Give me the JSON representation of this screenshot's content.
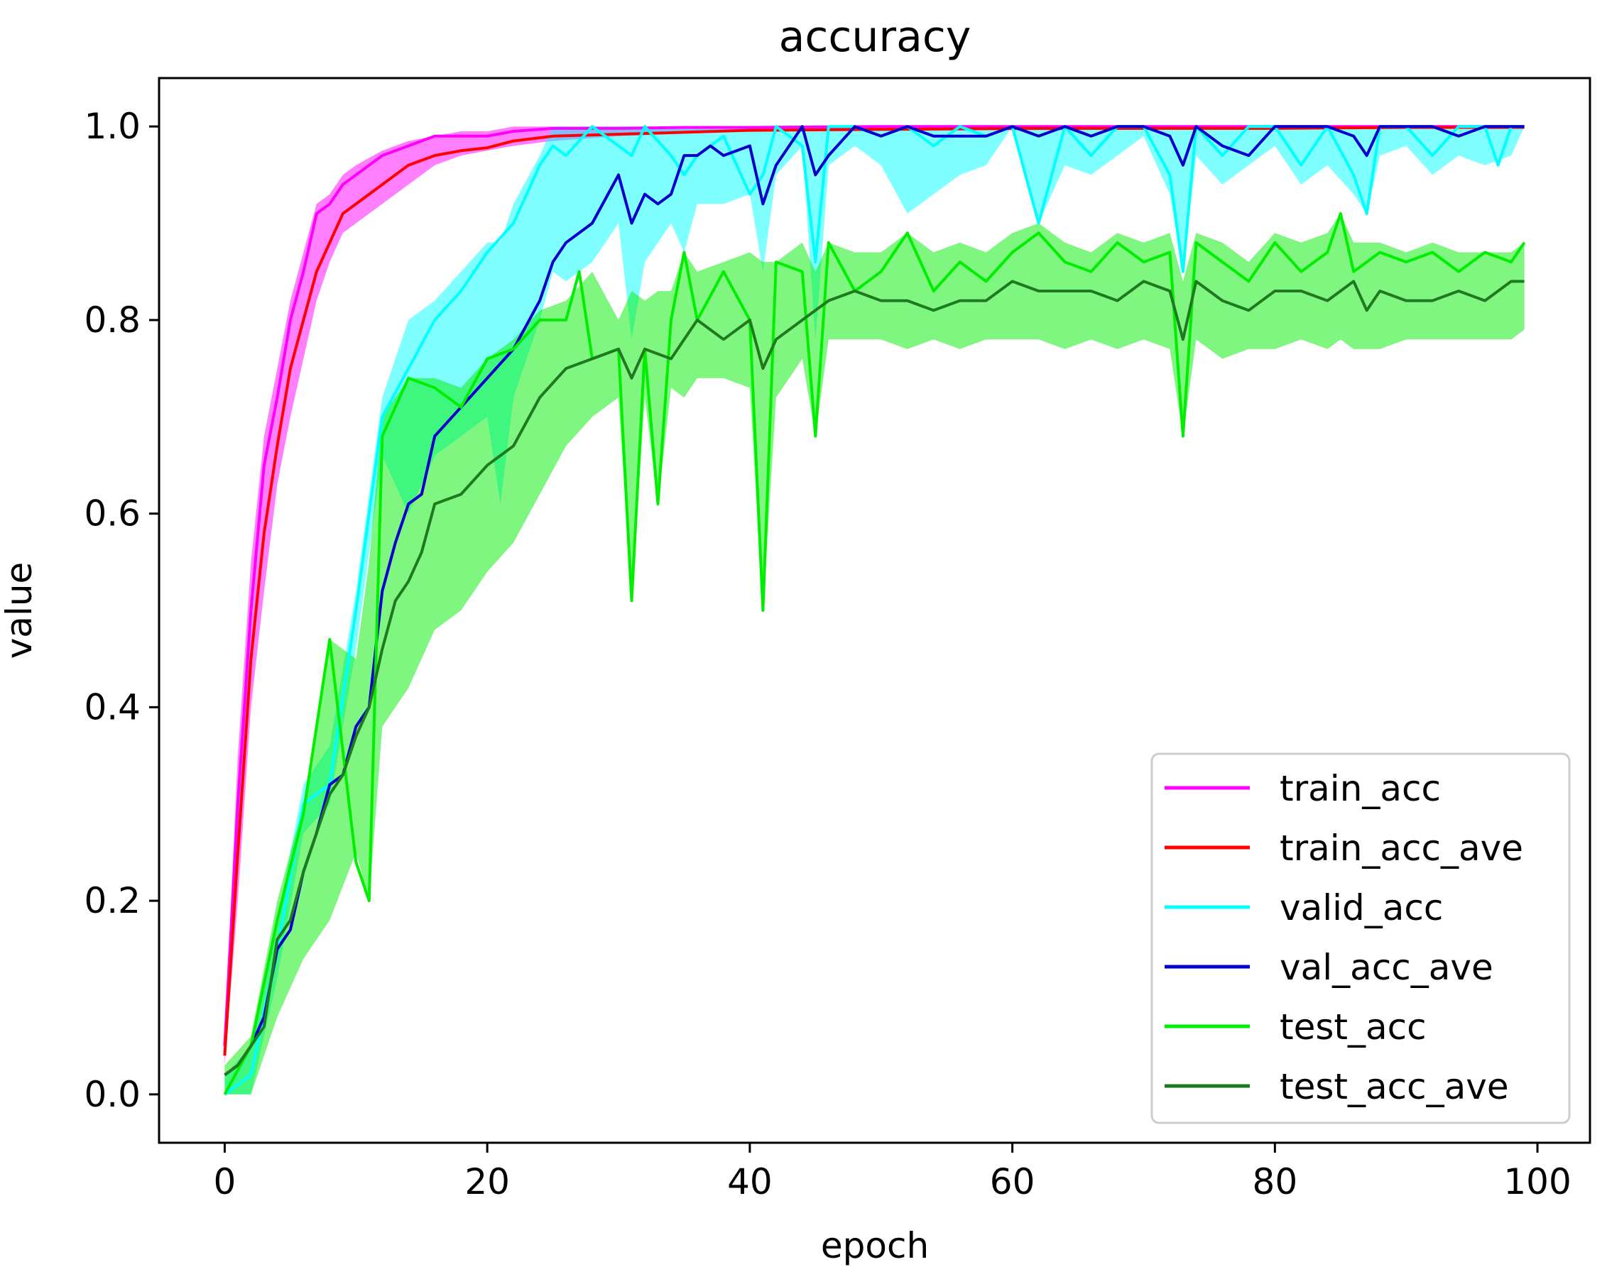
{
  "chart_data": {
    "type": "line",
    "title": "accuracy",
    "xlabel": "epoch",
    "ylabel": "value",
    "xlim": [
      -5,
      104
    ],
    "ylim": [
      -0.05,
      1.05
    ],
    "xticks": [
      0,
      20,
      40,
      60,
      80,
      100
    ],
    "yticks": [
      0.0,
      0.2,
      0.4,
      0.6,
      0.8,
      1.0
    ],
    "xtick_labels": [
      "0",
      "20",
      "40",
      "60",
      "80",
      "100"
    ],
    "ytick_labels": [
      "0.0",
      "0.2",
      "0.4",
      "0.6",
      "0.8",
      "1.0"
    ],
    "grid": false,
    "legend_position": "lower-right",
    "series": [
      {
        "name": "train_acc",
        "color": "#ff00ff",
        "x": [
          0,
          1,
          2,
          3,
          4,
          5,
          6,
          7,
          8,
          9,
          10,
          12,
          14,
          16,
          18,
          20,
          22,
          25,
          30,
          35,
          40,
          50,
          60,
          70,
          80,
          90,
          99
        ],
        "values": [
          0.05,
          0.3,
          0.5,
          0.65,
          0.72,
          0.8,
          0.85,
          0.91,
          0.92,
          0.94,
          0.95,
          0.97,
          0.98,
          0.99,
          0.99,
          0.99,
          0.995,
          0.998,
          0.998,
          0.999,
          0.999,
          1.0,
          1.0,
          1.0,
          1.0,
          1.0,
          1.0
        ]
      },
      {
        "name": "train_acc_ave",
        "color": "#ff0000",
        "x": [
          0,
          1,
          2,
          3,
          4,
          5,
          6,
          7,
          8,
          9,
          10,
          12,
          14,
          16,
          18,
          20,
          22,
          25,
          30,
          35,
          40,
          50,
          60,
          70,
          80,
          90,
          99
        ],
        "values": [
          0.04,
          0.25,
          0.45,
          0.58,
          0.67,
          0.75,
          0.8,
          0.85,
          0.88,
          0.91,
          0.92,
          0.94,
          0.96,
          0.97,
          0.975,
          0.978,
          0.985,
          0.99,
          0.992,
          0.994,
          0.996,
          0.997,
          0.998,
          0.998,
          0.998,
          0.999,
          0.999
        ]
      },
      {
        "name": "valid_acc",
        "color": "#00ffff",
        "x": [
          0,
          2,
          4,
          6,
          8,
          10,
          12,
          14,
          16,
          18,
          20,
          22,
          24,
          25,
          26,
          28,
          30,
          31,
          32,
          34,
          35,
          36,
          38,
          40,
          41,
          42,
          44,
          45,
          46,
          48,
          50,
          52,
          54,
          56,
          58,
          60,
          62,
          64,
          66,
          68,
          70,
          72,
          73,
          74,
          76,
          78,
          80,
          82,
          84,
          86,
          87,
          88,
          90,
          92,
          94,
          96,
          97,
          98,
          99
        ],
        "values": [
          0.0,
          0.02,
          0.15,
          0.3,
          0.32,
          0.5,
          0.7,
          0.75,
          0.8,
          0.83,
          0.87,
          0.9,
          0.96,
          0.98,
          0.97,
          1.0,
          0.98,
          0.97,
          1.0,
          0.97,
          0.95,
          0.97,
          0.99,
          0.93,
          0.95,
          1.0,
          0.98,
          0.86,
          1.0,
          1.0,
          0.99,
          1.0,
          0.98,
          1.0,
          0.99,
          1.0,
          0.9,
          1.0,
          0.97,
          1.0,
          1.0,
          0.95,
          0.85,
          1.0,
          0.97,
          1.0,
          1.0,
          0.96,
          1.0,
          0.95,
          0.91,
          1.0,
          1.0,
          0.97,
          1.0,
          1.0,
          0.96,
          1.0,
          1.0
        ]
      },
      {
        "name": "val_acc_ave",
        "color": "#0000cc",
        "x": [
          0,
          1,
          2,
          3,
          4,
          5,
          6,
          7,
          8,
          9,
          10,
          11,
          12,
          13,
          14,
          15,
          16,
          18,
          20,
          22,
          24,
          25,
          26,
          28,
          30,
          31,
          32,
          33,
          34,
          35,
          36,
          37,
          38,
          40,
          41,
          42,
          44,
          45,
          46,
          48,
          50,
          52,
          54,
          56,
          58,
          60,
          62,
          64,
          66,
          68,
          70,
          72,
          73,
          74,
          76,
          78,
          80,
          82,
          84,
          86,
          87,
          88,
          90,
          92,
          94,
          96,
          98,
          99
        ],
        "values": [
          0.02,
          0.03,
          0.05,
          0.08,
          0.15,
          0.17,
          0.23,
          0.27,
          0.32,
          0.33,
          0.38,
          0.4,
          0.52,
          0.57,
          0.61,
          0.62,
          0.68,
          0.71,
          0.74,
          0.77,
          0.82,
          0.86,
          0.88,
          0.9,
          0.95,
          0.9,
          0.93,
          0.92,
          0.93,
          0.97,
          0.97,
          0.98,
          0.97,
          0.98,
          0.92,
          0.96,
          1.0,
          0.95,
          0.97,
          1.0,
          0.99,
          1.0,
          0.99,
          0.99,
          0.99,
          1.0,
          0.99,
          1.0,
          0.99,
          1.0,
          1.0,
          0.99,
          0.96,
          1.0,
          0.98,
          0.97,
          1.0,
          1.0,
          1.0,
          0.99,
          0.97,
          1.0,
          1.0,
          1.0,
          0.99,
          1.0,
          1.0,
          1.0
        ]
      },
      {
        "name": "test_acc",
        "color": "#00ee00",
        "x": [
          0,
          2,
          4,
          6,
          8,
          10,
          11,
          12,
          14,
          16,
          18,
          20,
          22,
          24,
          26,
          27,
          28,
          30,
          31,
          32,
          33,
          34,
          35,
          36,
          38,
          40,
          41,
          42,
          44,
          45,
          46,
          48,
          50,
          52,
          54,
          56,
          58,
          60,
          62,
          64,
          66,
          68,
          70,
          72,
          73,
          74,
          76,
          78,
          80,
          82,
          84,
          85,
          86,
          88,
          90,
          92,
          94,
          96,
          98,
          99
        ],
        "values": [
          0.0,
          0.05,
          0.18,
          0.29,
          0.47,
          0.24,
          0.2,
          0.68,
          0.74,
          0.73,
          0.71,
          0.76,
          0.77,
          0.8,
          0.8,
          0.85,
          0.76,
          0.77,
          0.51,
          0.77,
          0.61,
          0.8,
          0.87,
          0.8,
          0.85,
          0.8,
          0.5,
          0.86,
          0.85,
          0.68,
          0.88,
          0.83,
          0.85,
          0.89,
          0.83,
          0.86,
          0.84,
          0.87,
          0.89,
          0.86,
          0.85,
          0.88,
          0.86,
          0.87,
          0.68,
          0.88,
          0.86,
          0.84,
          0.88,
          0.85,
          0.87,
          0.91,
          0.85,
          0.87,
          0.86,
          0.87,
          0.85,
          0.87,
          0.86,
          0.88
        ]
      },
      {
        "name": "test_acc_ave",
        "color": "#1f7a1f",
        "x": [
          0,
          1,
          2,
          3,
          4,
          5,
          6,
          7,
          8,
          9,
          10,
          11,
          12,
          13,
          14,
          15,
          16,
          18,
          20,
          22,
          24,
          26,
          28,
          30,
          31,
          32,
          34,
          36,
          38,
          40,
          41,
          42,
          44,
          46,
          48,
          50,
          52,
          54,
          56,
          58,
          60,
          62,
          64,
          66,
          68,
          70,
          72,
          73,
          74,
          76,
          78,
          80,
          82,
          84,
          86,
          87,
          88,
          90,
          92,
          94,
          96,
          98,
          99
        ],
        "values": [
          0.02,
          0.03,
          0.05,
          0.07,
          0.16,
          0.18,
          0.23,
          0.27,
          0.31,
          0.33,
          0.37,
          0.4,
          0.46,
          0.51,
          0.53,
          0.56,
          0.61,
          0.62,
          0.65,
          0.67,
          0.72,
          0.75,
          0.76,
          0.77,
          0.74,
          0.77,
          0.76,
          0.8,
          0.78,
          0.8,
          0.75,
          0.78,
          0.8,
          0.82,
          0.83,
          0.82,
          0.82,
          0.81,
          0.82,
          0.82,
          0.84,
          0.83,
          0.83,
          0.83,
          0.82,
          0.84,
          0.83,
          0.78,
          0.84,
          0.82,
          0.81,
          0.83,
          0.83,
          0.82,
          0.84,
          0.81,
          0.83,
          0.82,
          0.82,
          0.83,
          0.82,
          0.84,
          0.84
        ]
      }
    ],
    "bands": [
      {
        "for": "train_acc",
        "color": "#ff00ff",
        "x": [
          0,
          1,
          2,
          3,
          4,
          5,
          6,
          7,
          8,
          9,
          10,
          12,
          14,
          16,
          18,
          20,
          22,
          25,
          30,
          40,
          99
        ],
        "upper": [
          0.06,
          0.35,
          0.55,
          0.68,
          0.75,
          0.82,
          0.87,
          0.92,
          0.93,
          0.95,
          0.96,
          0.975,
          0.985,
          0.99,
          0.995,
          0.995,
          1.0,
          1.0,
          1.0,
          1.0,
          1.0
        ],
        "lower": [
          0.03,
          0.2,
          0.4,
          0.52,
          0.63,
          0.7,
          0.76,
          0.82,
          0.86,
          0.89,
          0.9,
          0.92,
          0.94,
          0.96,
          0.97,
          0.975,
          0.98,
          0.985,
          0.99,
          0.995,
          0.998
        ]
      },
      {
        "for": "valid_acc",
        "color": "#00ffff",
        "x": [
          0,
          2,
          4,
          6,
          8,
          10,
          12,
          14,
          16,
          18,
          20,
          21,
          22,
          24,
          25,
          26,
          28,
          30,
          31,
          32,
          34,
          35,
          36,
          38,
          40,
          41,
          42,
          44,
          45,
          46,
          48,
          50,
          52,
          54,
          56,
          58,
          60,
          62,
          64,
          66,
          68,
          70,
          72,
          73,
          74,
          76,
          78,
          80,
          82,
          84,
          86,
          87,
          88,
          90,
          92,
          94,
          96,
          98,
          99
        ],
        "upper": [
          0.02,
          0.05,
          0.18,
          0.32,
          0.36,
          0.52,
          0.72,
          0.8,
          0.82,
          0.85,
          0.88,
          0.88,
          0.92,
          0.97,
          1.0,
          1.0,
          1.0,
          1.0,
          1.0,
          1.0,
          1.0,
          1.0,
          1.0,
          1.0,
          1.0,
          1.0,
          1.0,
          1.0,
          1.0,
          1.0,
          1.0,
          1.0,
          1.0,
          1.0,
          1.0,
          1.0,
          1.0,
          1.0,
          1.0,
          1.0,
          1.0,
          1.0,
          1.0,
          1.0,
          1.0,
          1.0,
          1.0,
          1.0,
          1.0,
          1.0,
          1.0,
          1.0,
          1.0,
          1.0,
          1.0,
          1.0,
          1.0,
          1.0,
          1.0
        ],
        "lower": [
          0.0,
          0.0,
          0.12,
          0.27,
          0.3,
          0.46,
          0.66,
          0.6,
          0.66,
          0.68,
          0.7,
          0.61,
          0.72,
          0.8,
          0.85,
          0.84,
          0.86,
          0.9,
          0.78,
          0.86,
          0.9,
          0.87,
          0.92,
          0.92,
          0.93,
          0.85,
          0.95,
          0.98,
          0.78,
          0.96,
          0.98,
          0.96,
          0.91,
          0.93,
          0.95,
          0.96,
          1.0,
          0.9,
          0.96,
          0.95,
          0.97,
          0.99,
          0.93,
          0.85,
          0.97,
          0.94,
          0.96,
          0.98,
          0.94,
          0.96,
          0.93,
          0.91,
          0.97,
          0.98,
          0.95,
          0.97,
          0.96,
          0.97,
          1.0
        ]
      },
      {
        "for": "test_acc",
        "color": "#00ee00",
        "x": [
          0,
          2,
          4,
          6,
          8,
          10,
          11,
          12,
          13,
          14,
          16,
          18,
          20,
          22,
          24,
          26,
          28,
          30,
          31,
          32,
          33,
          34,
          35,
          36,
          38,
          40,
          41,
          42,
          44,
          45,
          46,
          48,
          50,
          52,
          54,
          56,
          58,
          60,
          62,
          64,
          66,
          68,
          70,
          72,
          73,
          74,
          76,
          78,
          80,
          82,
          84,
          85,
          86,
          88,
          90,
          92,
          94,
          96,
          98,
          99
        ],
        "upper": [
          0.03,
          0.06,
          0.2,
          0.3,
          0.47,
          0.45,
          0.55,
          0.7,
          0.72,
          0.74,
          0.74,
          0.73,
          0.76,
          0.78,
          0.81,
          0.82,
          0.85,
          0.8,
          0.83,
          0.82,
          0.83,
          0.83,
          0.87,
          0.85,
          0.86,
          0.87,
          0.86,
          0.86,
          0.88,
          0.85,
          0.88,
          0.87,
          0.87,
          0.89,
          0.87,
          0.88,
          0.87,
          0.89,
          0.9,
          0.88,
          0.87,
          0.89,
          0.88,
          0.89,
          0.84,
          0.89,
          0.88,
          0.86,
          0.89,
          0.88,
          0.89,
          0.91,
          0.88,
          0.88,
          0.87,
          0.88,
          0.87,
          0.87,
          0.87,
          0.88
        ],
        "lower": [
          0.0,
          0.0,
          0.08,
          0.14,
          0.18,
          0.25,
          0.2,
          0.38,
          0.4,
          0.42,
          0.48,
          0.5,
          0.54,
          0.57,
          0.62,
          0.67,
          0.7,
          0.72,
          0.51,
          0.72,
          0.61,
          0.73,
          0.72,
          0.74,
          0.74,
          0.73,
          0.5,
          0.72,
          0.76,
          0.68,
          0.78,
          0.78,
          0.78,
          0.77,
          0.78,
          0.77,
          0.78,
          0.78,
          0.78,
          0.77,
          0.78,
          0.77,
          0.78,
          0.77,
          0.68,
          0.78,
          0.76,
          0.77,
          0.77,
          0.78,
          0.77,
          0.78,
          0.77,
          0.77,
          0.78,
          0.78,
          0.78,
          0.78,
          0.78,
          0.79
        ]
      }
    ]
  }
}
